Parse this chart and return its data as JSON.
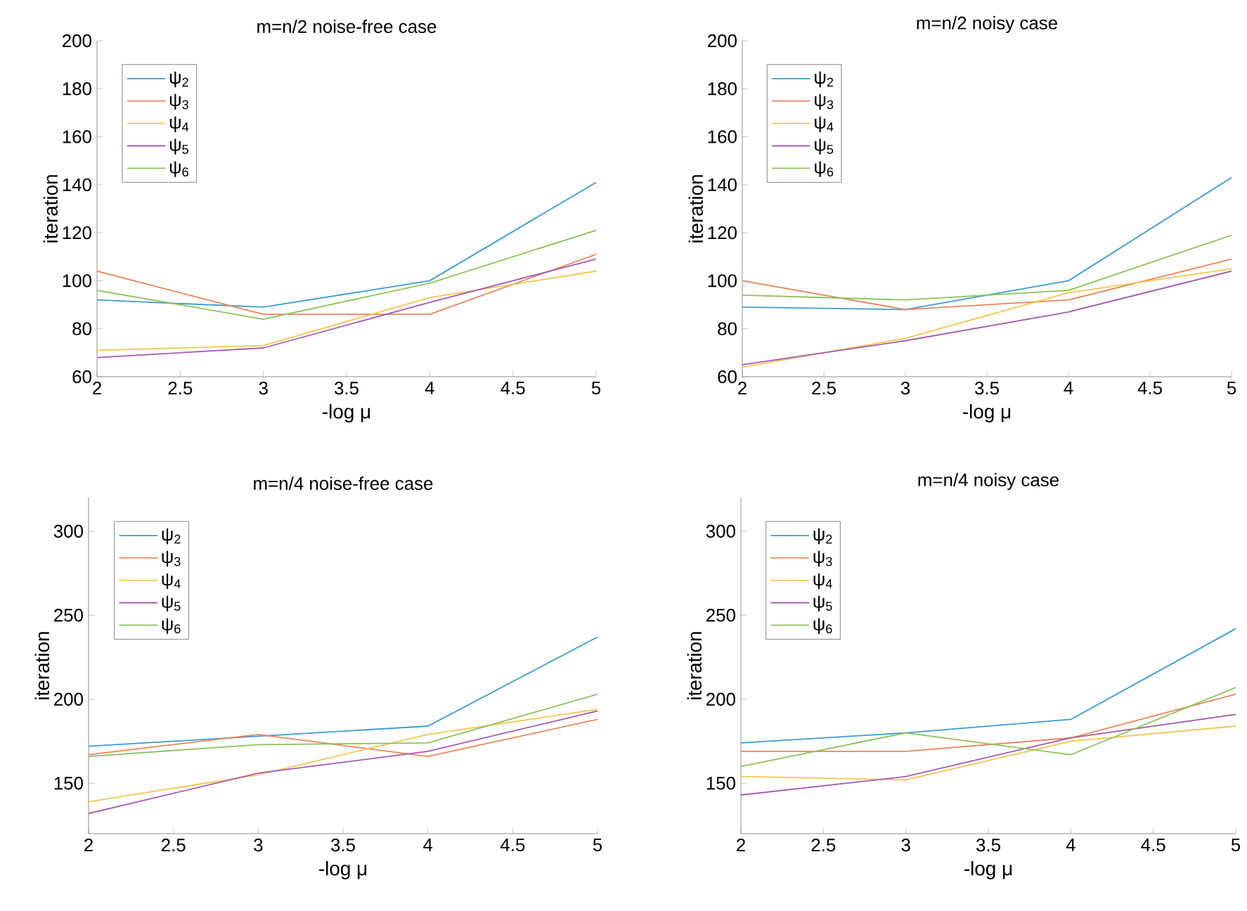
{
  "chart_data": [
    {
      "type": "line",
      "title": "m=n/2 noise-free case",
      "xlabel": "-log μ",
      "ylabel": "iteration",
      "x": [
        2,
        3,
        4,
        5
      ],
      "xlim": [
        2,
        5
      ],
      "ylim": [
        60,
        200
      ],
      "xticks": [
        2,
        2.5,
        3,
        3.5,
        4,
        4.5,
        5
      ],
      "yticks": [
        60,
        80,
        100,
        120,
        140,
        160,
        180,
        200
      ],
      "legend": "top left",
      "series": [
        {
          "name": "ψ$_{2}$",
          "color": "#3d9bd0",
          "values": [
            92,
            89,
            100,
            141
          ]
        },
        {
          "name": "ψ$_{3}$",
          "color": "#e8855a",
          "values": [
            104,
            86,
            86,
            111
          ]
        },
        {
          "name": "ψ$_{4}$",
          "color": "#f2c64e",
          "values": [
            71,
            73,
            93,
            104
          ]
        },
        {
          "name": "ψ$_{5}$",
          "color": "#a45bb0",
          "values": [
            68,
            72,
            91,
            109
          ]
        },
        {
          "name": "ψ$_{6}$",
          "color": "#8cc25a",
          "values": [
            96,
            84,
            99,
            121
          ]
        }
      ]
    },
    {
      "type": "line",
      "title": "m=n/2 noisy case",
      "xlabel": "-log μ",
      "ylabel": "iteration",
      "x": [
        2,
        3,
        4,
        5
      ],
      "xlim": [
        2,
        5
      ],
      "ylim": [
        60,
        200
      ],
      "xticks": [
        2,
        2.5,
        3,
        3.5,
        4,
        4.5,
        5
      ],
      "yticks": [
        60,
        80,
        100,
        120,
        140,
        160,
        180,
        200
      ],
      "legend": "top left",
      "series": [
        {
          "name": "ψ$_{2}$",
          "color": "#3d9bd0",
          "values": [
            89,
            88,
            100,
            143
          ]
        },
        {
          "name": "ψ$_{3}$",
          "color": "#e8855a",
          "values": [
            100,
            88,
            92,
            109
          ]
        },
        {
          "name": "ψ$_{4}$",
          "color": "#f2c64e",
          "values": [
            64,
            76,
            95,
            105
          ]
        },
        {
          "name": "ψ$_{5}$",
          "color": "#a45bb0",
          "values": [
            65,
            75,
            87,
            104
          ]
        },
        {
          "name": "ψ$_{6}$",
          "color": "#8cc25a",
          "values": [
            94,
            92,
            96,
            119
          ]
        }
      ]
    },
    {
      "type": "line",
      "title": "m=n/4 noise-free case",
      "xlabel": "-log μ",
      "ylabel": "iteration",
      "x": [
        2,
        3,
        4,
        5
      ],
      "xlim": [
        2,
        5
      ],
      "ylim": [
        120,
        320
      ],
      "xticks": [
        2,
        2.5,
        3,
        3.5,
        4,
        4.5,
        5
      ],
      "yticks": [
        150,
        200,
        250,
        300
      ],
      "legend": "top left",
      "series": [
        {
          "name": "ψ$_{2}$",
          "color": "#3d9bd0",
          "values": [
            172,
            178,
            184,
            237
          ]
        },
        {
          "name": "ψ$_{3}$",
          "color": "#e8855a",
          "values": [
            167,
            179,
            166,
            188
          ]
        },
        {
          "name": "ψ$_{4}$",
          "color": "#f2c64e",
          "values": [
            139,
            155,
            179,
            194
          ]
        },
        {
          "name": "ψ$_{5}$",
          "color": "#a45bb0",
          "values": [
            132,
            156,
            169,
            193
          ]
        },
        {
          "name": "ψ$_{6}$",
          "color": "#8cc25a",
          "values": [
            166,
            173,
            174,
            203
          ]
        }
      ]
    },
    {
      "type": "line",
      "title": "m=n/4 noisy case",
      "xlabel": "-log μ",
      "ylabel": "iteration",
      "x": [
        2,
        3,
        4,
        5
      ],
      "xlim": [
        2,
        5
      ],
      "ylim": [
        120,
        320
      ],
      "xticks": [
        2,
        2.5,
        3,
        3.5,
        4,
        4.5,
        5
      ],
      "yticks": [
        150,
        200,
        250,
        300
      ],
      "legend": "top left",
      "series": [
        {
          "name": "ψ$_{2}$",
          "color": "#3d9bd0",
          "values": [
            174,
            180,
            188,
            242
          ]
        },
        {
          "name": "ψ$_{3}$",
          "color": "#e8855a",
          "values": [
            169,
            169,
            177,
            203
          ]
        },
        {
          "name": "ψ$_{4}$",
          "color": "#f2c64e",
          "values": [
            154,
            152,
            175,
            184
          ]
        },
        {
          "name": "ψ$_{5}$",
          "color": "#a45bb0",
          "values": [
            143,
            154,
            177,
            191
          ]
        },
        {
          "name": "ψ$_{6}$",
          "color": "#8cc25a",
          "values": [
            160,
            180,
            167,
            207
          ]
        }
      ]
    }
  ]
}
